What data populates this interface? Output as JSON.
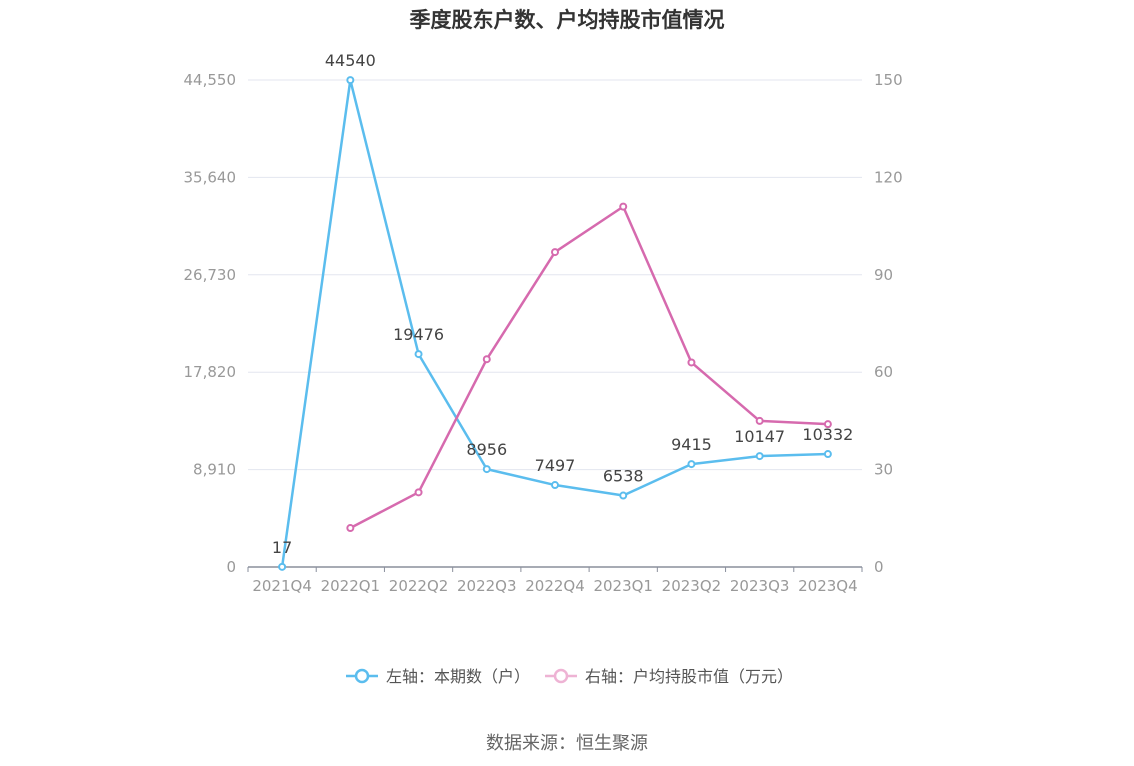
{
  "chart_data": {
    "type": "line",
    "title": "季度股东户数、户均持股市值情况",
    "categories": [
      "2021Q4",
      "2022Q1",
      "2022Q2",
      "2022Q3",
      "2022Q4",
      "2023Q1",
      "2023Q2",
      "2023Q3",
      "2023Q4"
    ],
    "left_axis": {
      "ticks": [
        0,
        8910,
        17820,
        26730,
        35640,
        44550
      ],
      "tick_labels": [
        "0",
        "8,910",
        "17,820",
        "26,730",
        "35,640",
        "44,550"
      ],
      "ylim": [
        0,
        44550
      ]
    },
    "right_axis": {
      "ticks": [
        0,
        30,
        60,
        90,
        120,
        150
      ],
      "tick_labels": [
        "0",
        "30",
        "60",
        "90",
        "120",
        "150"
      ],
      "ylim": [
        0,
        150
      ]
    },
    "series": [
      {
        "name": "左轴：本期数（户）",
        "axis": "left",
        "color": "#5bbdee",
        "values": [
          17,
          44540,
          19476,
          8956,
          7497,
          6538,
          9415,
          10147,
          10332
        ],
        "labels": [
          "17",
          "44540",
          "19476",
          "8956",
          "7497",
          "6538",
          "9415",
          "10147",
          "10332"
        ]
      },
      {
        "name": "右轴：户均持股市值（万元）",
        "axis": "right",
        "color": "#d66aae",
        "values": [
          null,
          12,
          23,
          64,
          97,
          111,
          63,
          45,
          44
        ]
      }
    ],
    "grid": true,
    "legend_position": "bottom"
  },
  "source_text": "数据来源：恒生聚源"
}
